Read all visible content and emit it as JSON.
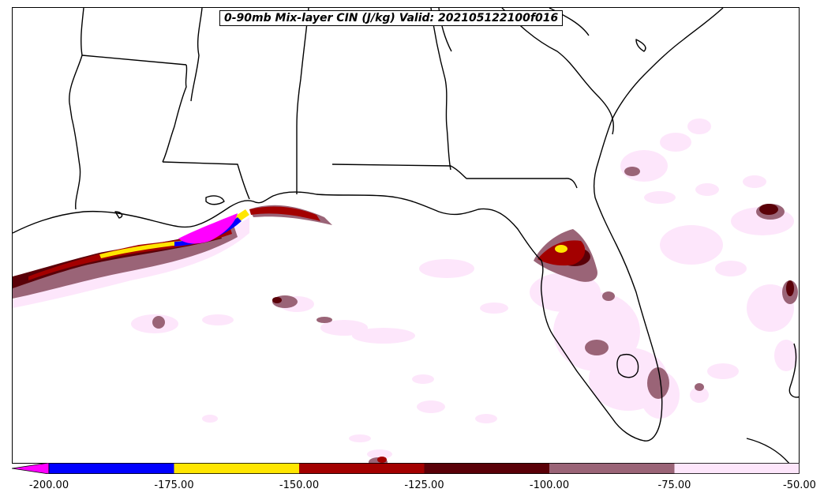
{
  "title": "0-90mb Mix-layer CIN (J/kg) Valid: 202105122100f016",
  "colorbar": {
    "extend": "min",
    "extend_color": "#ff00ff",
    "segments": [
      {
        "from": -200,
        "to": -175,
        "color": "#0000ff"
      },
      {
        "from": -175,
        "to": -150,
        "color": "#ffe600"
      },
      {
        "from": -150,
        "to": -125,
        "color": "#a30000"
      },
      {
        "from": -125,
        "to": -100,
        "color": "#5a0008"
      },
      {
        "from": -100,
        "to": -75,
        "color": "#9a6477"
      },
      {
        "from": -75,
        "to": -50,
        "color": "#fde6fb"
      }
    ],
    "ticks": [
      "-200.00",
      "-175.00",
      "-150.00",
      "-125.00",
      "-100.00",
      "-75.00",
      "-50.00"
    ]
  }
}
